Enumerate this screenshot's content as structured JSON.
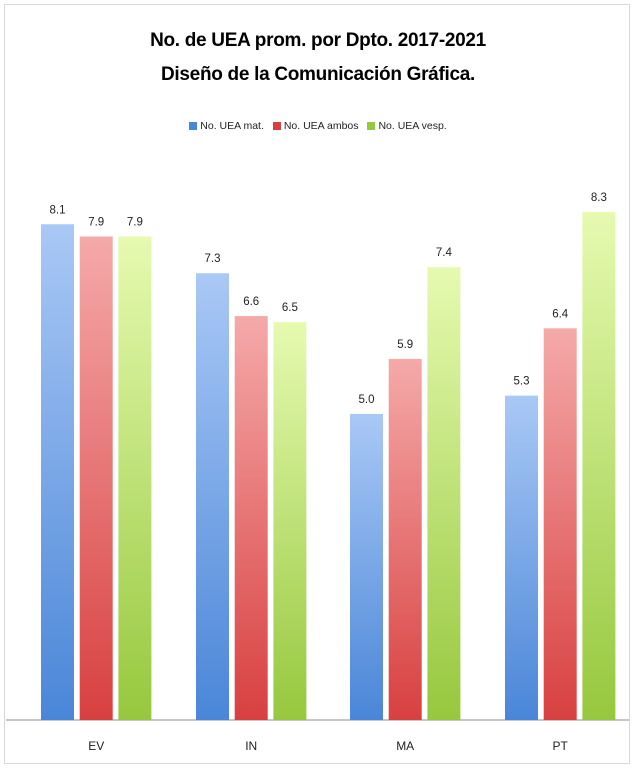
{
  "title_line1": "No. de UEA prom. por  Dpto. 2017-2021",
  "title_line2": "Diseño de la Comunicación  Gráfica.",
  "chart_data": {
    "type": "bar",
    "title": "No. de UEA prom. por  Dpto. 2017-2021 Diseño de la Comunicación  Gráfica.",
    "categories": [
      "EV",
      "IN",
      "MA",
      "PT"
    ],
    "series": [
      {
        "name": "No. UEA mat.",
        "values": [
          8.1,
          7.3,
          5.0,
          5.3
        ],
        "color": "#4a86d8",
        "color_light": "#a9c8f5"
      },
      {
        "name": "No. UEA ambos",
        "values": [
          7.9,
          6.6,
          5.9,
          6.4
        ],
        "color": "#d84040",
        "color_light": "#f5a9a9"
      },
      {
        "name": "No. UEA vesp.",
        "values": [
          7.9,
          6.5,
          7.4,
          8.3
        ],
        "color": "#96c83e",
        "color_light": "#e6fab0"
      }
    ],
    "data_labels": [
      [
        "8.1",
        "7.3",
        "5.0",
        "5.3"
      ],
      [
        "7.9",
        "6.6",
        "5.9",
        "6.4"
      ],
      [
        "7.9",
        "6.5",
        "7.4",
        "8.3"
      ]
    ],
    "ylim": [
      0,
      9
    ],
    "grid": false,
    "legend_position": "top"
  }
}
